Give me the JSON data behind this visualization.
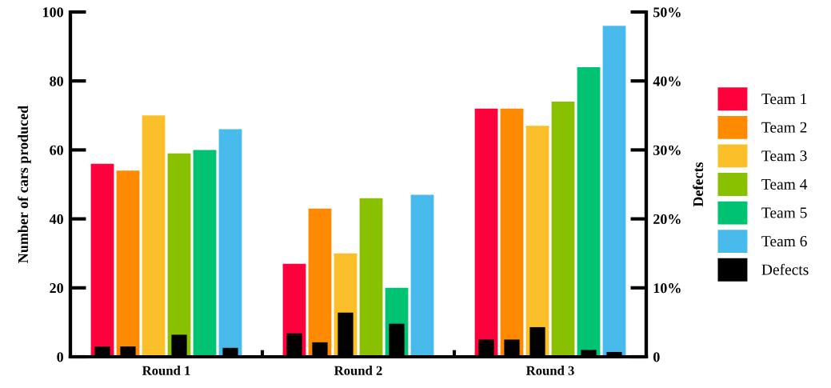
{
  "chart_data": {
    "type": "bar",
    "ylabel": "Number of cars produced",
    "y2label": "Defects",
    "categories": [
      "Round 1",
      "Round 2",
      "Round 3"
    ],
    "series": [
      {
        "name": "Team 1",
        "color": "#ff003c",
        "values": [
          56,
          27,
          72
        ]
      },
      {
        "name": "Team 2",
        "color": "#ff8a00",
        "values": [
          54,
          43,
          72
        ]
      },
      {
        "name": "Team 3",
        "color": "#fbbf2a",
        "values": [
          70,
          30,
          67
        ]
      },
      {
        "name": "Team 4",
        "color": "#89c100",
        "values": [
          59,
          46,
          74
        ]
      },
      {
        "name": "Team 5",
        "color": "#00c273",
        "values": [
          60,
          20,
          84
        ]
      },
      {
        "name": "Team 6",
        "color": "#48bbec",
        "values": [
          66,
          47,
          96
        ]
      },
      {
        "name": "Defects",
        "color": "#000000",
        "axis": "y2",
        "values": [
          1.5,
          3.4,
          2.5
        ]
      },
      {
        "color": "#000000",
        "axis": "y2",
        "values": [
          1.5,
          2.1,
          2.5
        ]
      },
      {
        "color": "#000000",
        "axis": "y2",
        "values": [
          0,
          6.4,
          4.3
        ]
      },
      {
        "color": "#000000",
        "axis": "y2",
        "values": [
          3.2,
          0,
          0
        ]
      },
      {
        "color": "#000000",
        "axis": "y2",
        "values": [
          0,
          4.8,
          1.0
        ]
      },
      {
        "color": "#000000",
        "axis": "y2",
        "values": [
          1.3,
          0,
          0.7
        ]
      }
    ],
    "ylim": [
      0,
      100
    ],
    "yticks": [
      0,
      20,
      40,
      60,
      80,
      100
    ],
    "y2lim": [
      0,
      50
    ],
    "y2ticks": [
      0,
      {
        "value": 10,
        "label": "10%"
      },
      {
        "value": 20,
        "label": "20%"
      },
      {
        "value": 30,
        "label": "30%"
      },
      {
        "value": 40,
        "label": "40%"
      },
      {
        "value": 50,
        "label": "50%"
      }
    ],
    "legend": "right",
    "grid": false
  }
}
